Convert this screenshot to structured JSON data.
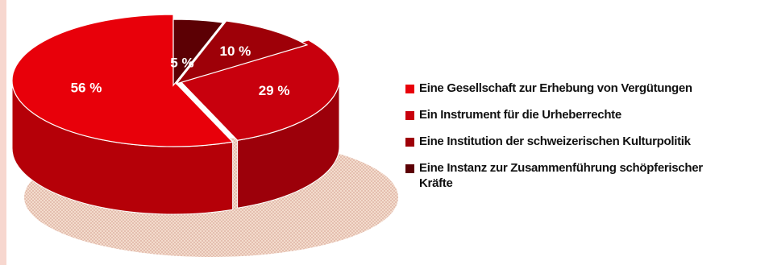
{
  "chart_data": {
    "type": "pie",
    "style": "3d",
    "categories": [
      "Eine Gesellschaft zur Erhebung von Vergütungen",
      "Ein Instrument für die Urheberrechte",
      "Eine Institution der schweizerischen Kulturpolitik",
      "Eine Instanz zur Zusammenführung schöpferischer Kräfte"
    ],
    "values": [
      56,
      29,
      10,
      5
    ],
    "labels": [
      "56 %",
      "29 %",
      "10 %",
      "5 %"
    ],
    "colors": [
      "#e8000a",
      "#c8000d",
      "#9e0008",
      "#5c0004"
    ],
    "legend_position": "right"
  },
  "legend": {
    "items": [
      {
        "label": "Eine Gesellschaft zur Erhebung von Vergütungen",
        "color": "#e8000a"
      },
      {
        "label": "Ein Instrument für die Urheberrechte",
        "color": "#c8000d"
      },
      {
        "label": "Eine Institution der schweizerischen Kulturpolitik",
        "color": "#9e0008"
      },
      {
        "label": "Eine Instanz zur Zusammenführung schöpferischer Kräfte",
        "color": "#5c0004"
      }
    ]
  }
}
